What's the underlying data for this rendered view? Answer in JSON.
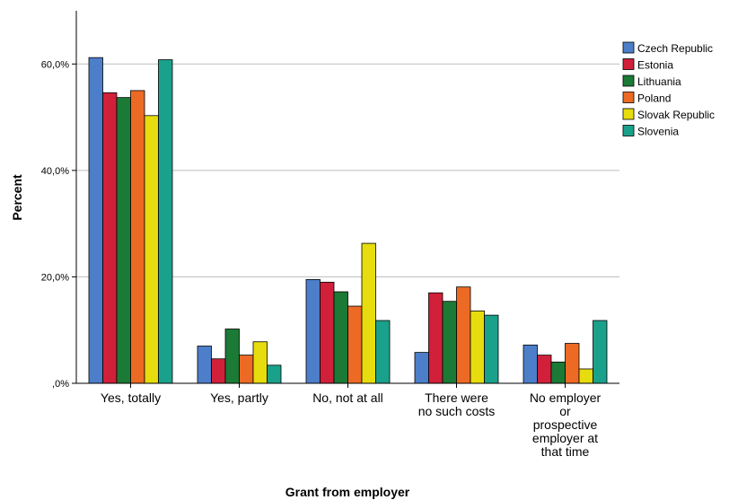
{
  "chart_data": {
    "type": "bar",
    "xlabel": "Grant from employer",
    "ylabel": "Percent",
    "ylim": [
      0,
      70
    ],
    "yticks": [
      0,
      20,
      40,
      60
    ],
    "ytick_labels": [
      ",0%",
      "20,0%",
      "40,0%",
      "60,0%"
    ],
    "grid": true,
    "legend_position": "right",
    "categories": [
      [
        "Yes, totally"
      ],
      [
        "Yes, partly"
      ],
      [
        "No, not at all"
      ],
      [
        "There were",
        "no such costs"
      ],
      [
        "No employer",
        "or",
        "prospective",
        "employer at",
        "that time"
      ]
    ],
    "series": [
      {
        "name": "Czech Republic",
        "color": "#4c7ec9",
        "values": [
          61.2,
          7.0,
          19.5,
          5.8,
          7.2
        ]
      },
      {
        "name": "Estonia",
        "color": "#d1203a",
        "values": [
          54.6,
          4.6,
          19.0,
          17.0,
          5.3
        ]
      },
      {
        "name": "Lithuania",
        "color": "#1b7a35",
        "values": [
          53.7,
          10.2,
          17.2,
          15.4,
          4.0
        ]
      },
      {
        "name": "Poland",
        "color": "#ed6a24",
        "values": [
          55.0,
          5.3,
          14.5,
          18.1,
          7.5
        ]
      },
      {
        "name": "Slovak Republic",
        "color": "#e6dc0e",
        "values": [
          50.3,
          7.8,
          26.3,
          13.6,
          2.7
        ]
      },
      {
        "name": "Slovenia",
        "color": "#1aa18b",
        "values": [
          60.8,
          3.4,
          11.8,
          12.8,
          11.8
        ]
      }
    ]
  }
}
